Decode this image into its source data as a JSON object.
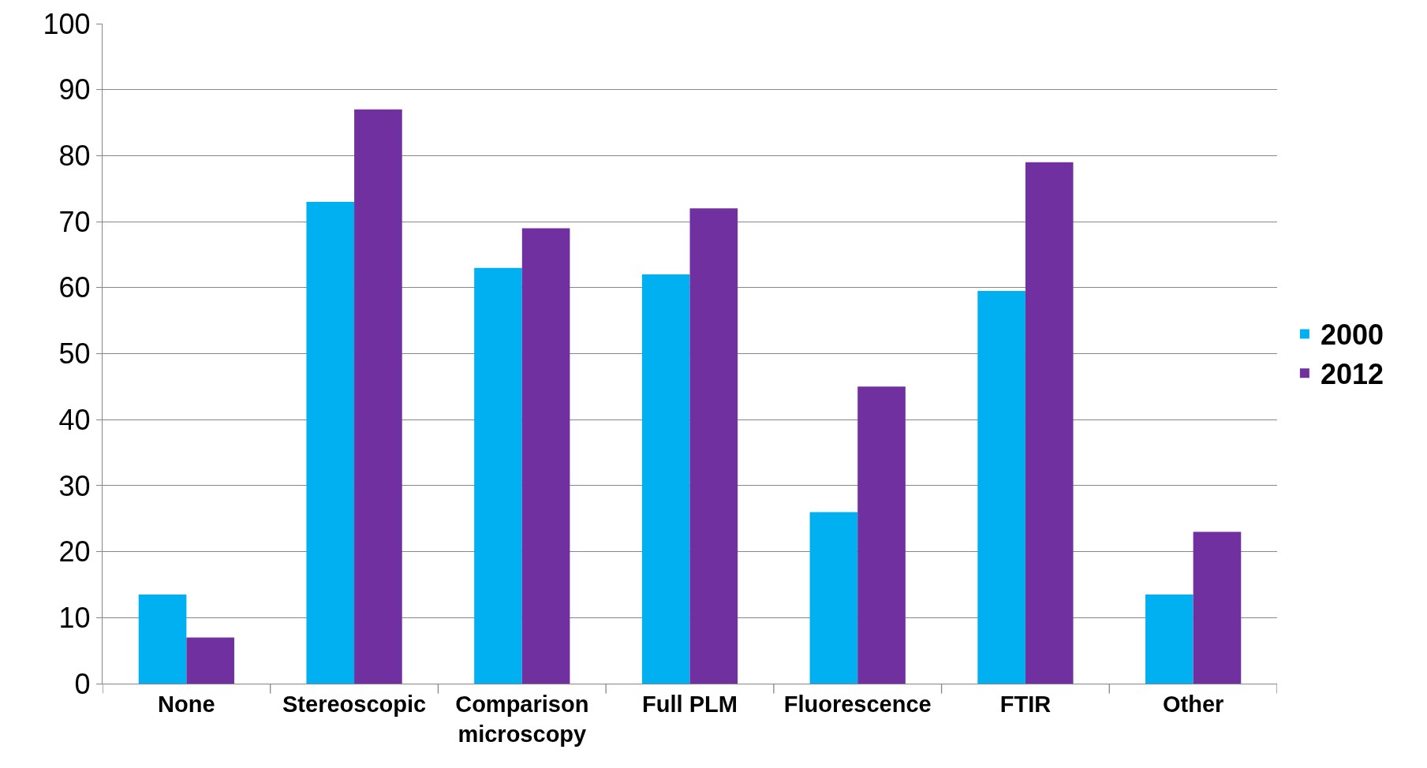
{
  "chart_data": {
    "type": "bar",
    "categories": [
      "None",
      "Stereoscopic",
      "Comparison microscopy",
      "Full PLM",
      "Fluorescence",
      "FTIR",
      "Other"
    ],
    "series": [
      {
        "name": "2000",
        "color": "#00b0f0",
        "values": [
          13.5,
          73,
          63,
          62,
          26,
          59.5,
          13.5
        ]
      },
      {
        "name": "2012",
        "color": "#7030a0",
        "values": [
          7,
          87,
          69,
          72,
          45,
          79,
          23
        ]
      }
    ],
    "ylim": [
      0,
      100
    ],
    "yticks": [
      0,
      10,
      20,
      30,
      40,
      50,
      60,
      70,
      80,
      90,
      100
    ],
    "grid": "y",
    "legend": "right"
  }
}
